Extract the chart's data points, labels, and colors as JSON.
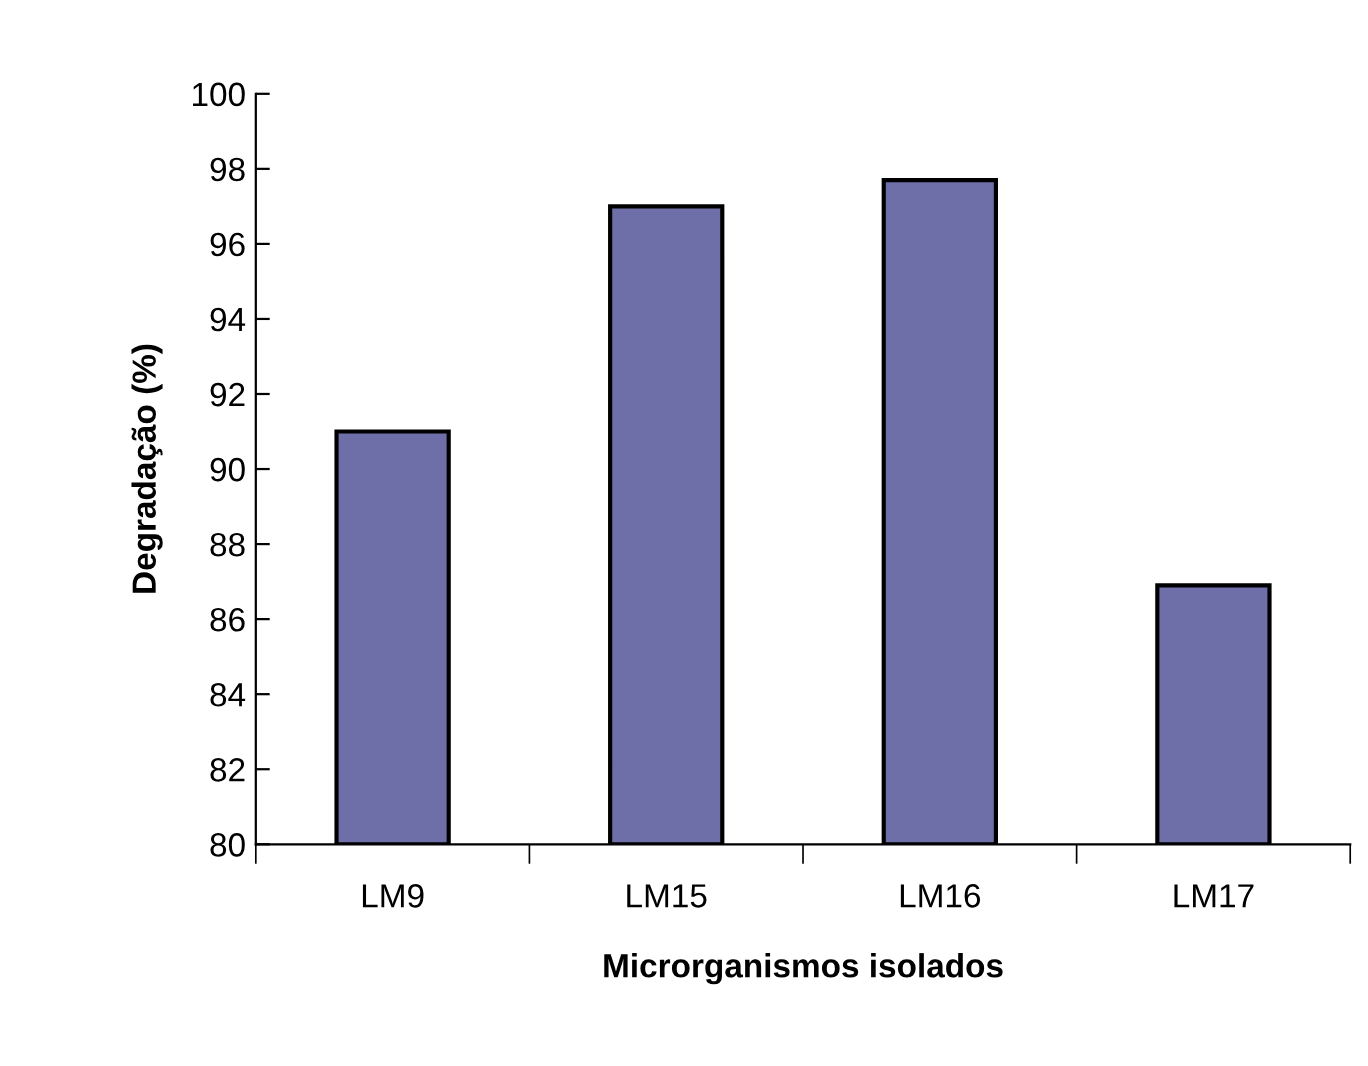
{
  "chart_data": {
    "type": "bar",
    "xlabel": "Microrganismos isolados",
    "ylabel": "Degradação (%)",
    "categories": [
      "LM9",
      "LM15",
      "LM16",
      "LM17"
    ],
    "values": [
      91.0,
      97.0,
      97.7,
      86.9
    ],
    "color": "#6e6ea8",
    "ylim": [
      80,
      100
    ],
    "yticks": [
      80,
      82,
      84,
      86,
      88,
      90,
      92,
      94,
      96,
      98,
      100
    ],
    "grid": false,
    "legend": false
  }
}
